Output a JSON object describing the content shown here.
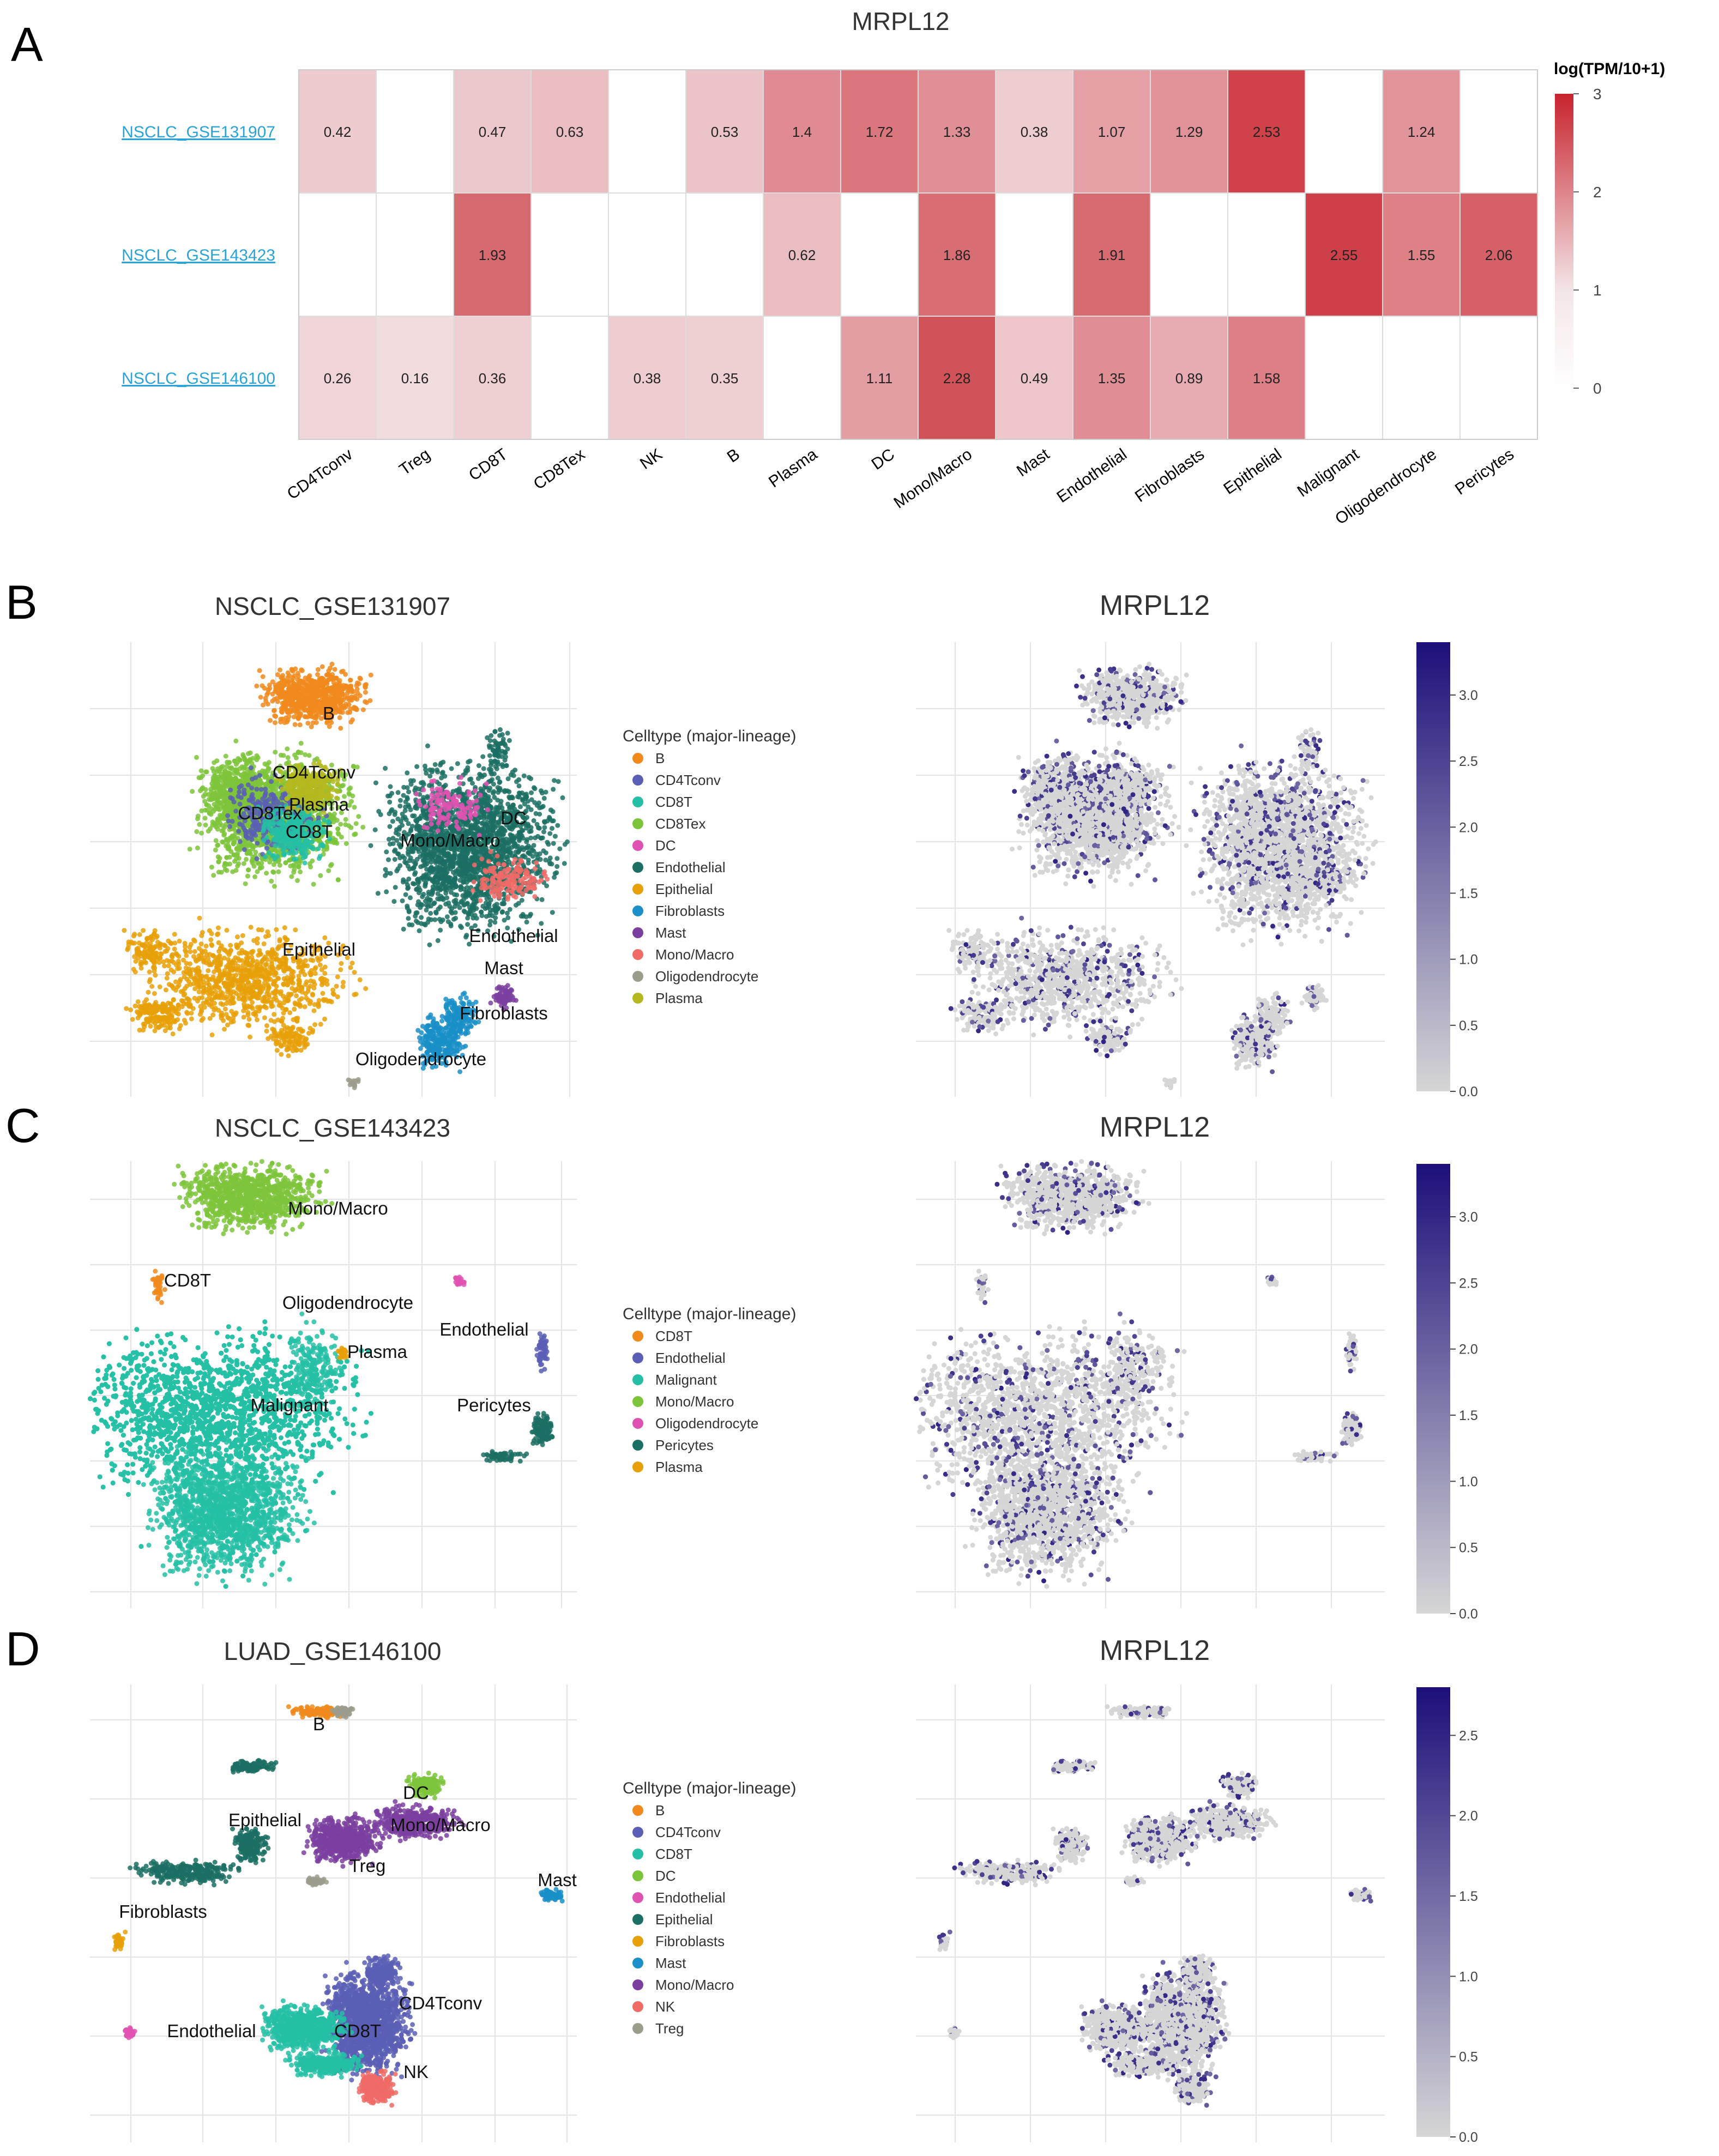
{
  "colors": {
    "heat_low": "#f3e6e8",
    "heat_high": "#c8232d",
    "expr_low": "#d6d6d6",
    "expr_high": "#1c0f7a",
    "link": "#29a3d8",
    "grid": "#e4e4e4"
  },
  "chart_data": [
    {
      "type": "heatmap",
      "panel_label": "A",
      "title": "MRPL12",
      "legend_title": "log(TPM/10+1)",
      "scale_range": [
        0,
        3
      ],
      "scale_ticks": [
        "0",
        "1",
        "2",
        "3"
      ],
      "rows": [
        "NSCLC_GSE131907",
        "NSCLC_GSE143423",
        "NSCLC_GSE146100"
      ],
      "columns": [
        "CD4Tconv",
        "Treg",
        "CD8T",
        "CD8Tex",
        "NK",
        "B",
        "Plasma",
        "DC",
        "Mono/Macro",
        "Mast",
        "Endothelial",
        "Fibroblasts",
        "Epithelial",
        "Malignant",
        "Oligodendrocyte",
        "Pericytes"
      ],
      "values": [
        [
          0.42,
          null,
          0.47,
          0.63,
          null,
          0.53,
          1.4,
          1.72,
          1.33,
          0.38,
          1.07,
          1.29,
          2.53,
          null,
          1.24,
          null
        ],
        [
          null,
          null,
          1.93,
          null,
          null,
          null,
          0.62,
          null,
          1.86,
          null,
          1.91,
          null,
          null,
          2.55,
          1.55,
          2.06
        ],
        [
          0.26,
          0.16,
          0.36,
          null,
          0.38,
          0.35,
          null,
          1.11,
          2.28,
          0.49,
          1.35,
          0.89,
          1.58,
          null,
          null,
          null
        ]
      ],
      "cell_labels": [
        [
          "0.42",
          "",
          "0.47",
          "0.63",
          "",
          "0.53",
          "1.4",
          "1.72",
          "1.33",
          "0.38",
          "1.07",
          "1.29",
          "2.53",
          "",
          "1.24",
          ""
        ],
        [
          "",
          "",
          "1.93",
          "",
          "",
          "",
          "0.62",
          "",
          "1.86",
          "",
          "1.91",
          "",
          "",
          "2.55",
          "1.55",
          "2.06"
        ],
        [
          "0.26",
          "0.16",
          "0.36",
          "",
          "0.38",
          "0.35",
          "",
          "1.11",
          "2.28",
          "0.49",
          "1.35",
          "0.89",
          "1.58",
          "",
          "",
          ""
        ]
      ]
    },
    {
      "type": "scatter",
      "panel_label": "B",
      "title": "NSCLC_GSE131907",
      "feature_title": "MRPL12",
      "legend_title": "Celltype (major-lineage)",
      "legend": [
        {
          "name": "B",
          "color": "#f08a1c"
        },
        {
          "name": "CD4Tconv",
          "color": "#5a5fb5"
        },
        {
          "name": "CD8T",
          "color": "#25bfa5"
        },
        {
          "name": "CD8Tex",
          "color": "#7cc43a"
        },
        {
          "name": "DC",
          "color": "#e052b2"
        },
        {
          "name": "Endothelial",
          "color": "#1b6f63"
        },
        {
          "name": "Epithelial",
          "color": "#e8a008"
        },
        {
          "name": "Fibroblasts",
          "color": "#1a8fc8"
        },
        {
          "name": "Mast",
          "color": "#7b3fa0"
        },
        {
          "name": "Mono/Macro",
          "color": "#f06a66"
        },
        {
          "name": "Oligodendrocyte",
          "color": "#9c9c8c"
        },
        {
          "name": "Plasma",
          "color": "#b4b81e"
        }
      ],
      "cluster_labels": [
        "B",
        "CD4Tconv",
        "Plasma",
        "CD8Tex",
        "CD8T",
        "DC",
        "Mono/Macro",
        "Endothelial",
        "Epithelial",
        "Mast",
        "Fibroblasts",
        "Oligodendrocyte"
      ],
      "colorbar_ticks": [
        "0.0",
        "0.5",
        "1.0",
        "1.5",
        "2.0",
        "2.5",
        "3.0"
      ],
      "colorbar_max": 3.4
    },
    {
      "type": "scatter",
      "panel_label": "C",
      "title": "NSCLC_GSE143423",
      "feature_title": "MRPL12",
      "legend_title": "Celltype (major-lineage)",
      "legend": [
        {
          "name": "CD8T",
          "color": "#f08a1c"
        },
        {
          "name": "Endothelial",
          "color": "#5a5fb5"
        },
        {
          "name": "Malignant",
          "color": "#25bfa5"
        },
        {
          "name": "Mono/Macro",
          "color": "#7cc43a"
        },
        {
          "name": "Oligodendrocyte",
          "color": "#e052b2"
        },
        {
          "name": "Pericytes",
          "color": "#1b6f63"
        },
        {
          "name": "Plasma",
          "color": "#e8a008"
        }
      ],
      "cluster_labels": [
        "Mono/Macro",
        "CD8T",
        "Oligodendrocyte",
        "Endothelial",
        "Plasma",
        "Malignant",
        "Pericytes"
      ],
      "colorbar_ticks": [
        "0.0",
        "0.5",
        "1.0",
        "1.5",
        "2.0",
        "2.5",
        "3.0"
      ],
      "colorbar_max": 3.4
    },
    {
      "type": "scatter",
      "panel_label": "D",
      "title": "LUAD_GSE146100",
      "feature_title": "MRPL12",
      "legend_title": "Celltype (major-lineage)",
      "legend": [
        {
          "name": "B",
          "color": "#f08a1c"
        },
        {
          "name": "CD4Tconv",
          "color": "#5a5fb5"
        },
        {
          "name": "CD8T",
          "color": "#25bfa5"
        },
        {
          "name": "DC",
          "color": "#7cc43a"
        },
        {
          "name": "Endothelial",
          "color": "#e052b2"
        },
        {
          "name": "Epithelial",
          "color": "#1b6f63"
        },
        {
          "name": "Fibroblasts",
          "color": "#e8a008"
        },
        {
          "name": "Mast",
          "color": "#1a8fc8"
        },
        {
          "name": "Mono/Macro",
          "color": "#7b3fa0"
        },
        {
          "name": "NK",
          "color": "#f06a66"
        },
        {
          "name": "Treg",
          "color": "#9c9c8c"
        }
      ],
      "cluster_labels": [
        "B",
        "DC",
        "Mono/Macro",
        "Epithelial",
        "Treg",
        "Mast",
        "Fibroblasts",
        "CD4Tconv",
        "Endothelial",
        "CD8T",
        "NK"
      ],
      "colorbar_ticks": [
        "0.0",
        "0.5",
        "1.0",
        "1.5",
        "2.0",
        "2.5"
      ],
      "colorbar_max": 2.8
    }
  ]
}
